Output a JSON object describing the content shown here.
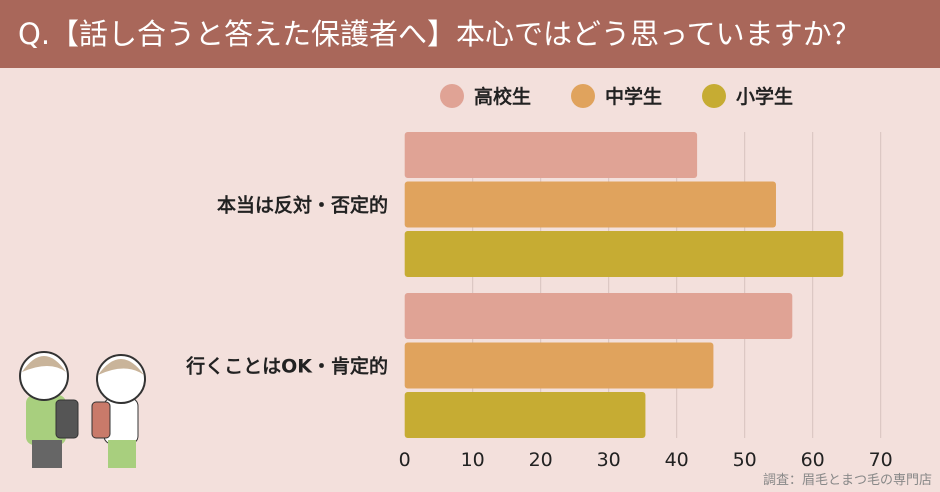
{
  "title": "Q.【話し合うと答えた保護者へ】本心ではどう思っていますか？",
  "credit": "調査：眉毛とまつ毛の専門店",
  "chart_data": {
    "type": "bar",
    "orientation": "horizontal",
    "categories": [
      "本当は反対・否定的",
      "行くことはOK・肯定的"
    ],
    "series": [
      {
        "name": "高校生",
        "color": "#e0a395",
        "values": [
          43.0,
          57.0
        ]
      },
      {
        "name": "中学生",
        "color": "#e0a35d",
        "values": [
          54.6,
          45.4
        ]
      },
      {
        "name": "小学生",
        "color": "#c6ac33",
        "values": [
          64.5,
          35.4
        ]
      }
    ],
    "xlim": [
      0,
      70
    ],
    "xticks": [
      0,
      10,
      20,
      30,
      40,
      50,
      60,
      70
    ],
    "grid": true,
    "legend": "top"
  }
}
